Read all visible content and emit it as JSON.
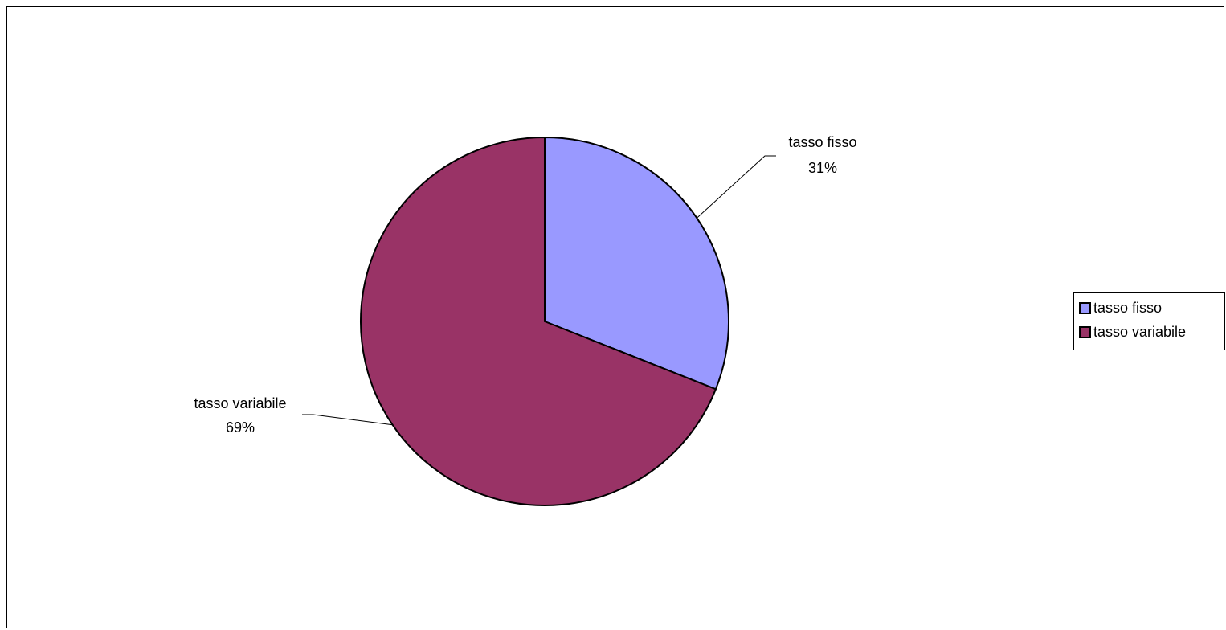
{
  "chart_data": {
    "type": "pie",
    "title": "",
    "categories": [
      "tasso fisso",
      "tasso variabile"
    ],
    "values": [
      31,
      69
    ],
    "unit": "%",
    "data_labels": [
      {
        "category": "tasso fisso",
        "value": "31%"
      },
      {
        "category": "tasso variabile",
        "value": "69%"
      }
    ],
    "colors": [
      "#9999ff",
      "#993366"
    ],
    "start_angle_deg": 0,
    "direction": "clockwise",
    "legend": {
      "position": "right",
      "entries": [
        "tasso fisso",
        "tasso variabile"
      ]
    }
  }
}
